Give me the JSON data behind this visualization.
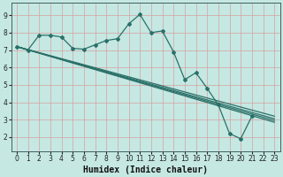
{
  "xlabel": "Humidex (Indice chaleur)",
  "bg_color": "#c5e8e3",
  "grid_color": "#d9a0a0",
  "line_color": "#2a7068",
  "marker": "D",
  "markersize": 2.0,
  "linewidth": 0.9,
  "xlim": [
    -0.5,
    23.5
  ],
  "ylim": [
    1.2,
    9.7
  ],
  "xticks": [
    0,
    1,
    2,
    3,
    4,
    5,
    6,
    7,
    8,
    9,
    10,
    11,
    12,
    13,
    14,
    15,
    16,
    17,
    18,
    19,
    20,
    21,
    22,
    23
  ],
  "yticks": [
    2,
    3,
    4,
    5,
    6,
    7,
    8,
    9
  ],
  "main_x": [
    0,
    1,
    2,
    3,
    4,
    5,
    6,
    7,
    8,
    9,
    10,
    11,
    12,
    13,
    14,
    15,
    16,
    17,
    18,
    19,
    20,
    21
  ],
  "main_y": [
    7.2,
    7.0,
    7.85,
    7.85,
    7.75,
    7.1,
    7.05,
    7.3,
    7.55,
    7.65,
    8.5,
    9.05,
    8.0,
    8.1,
    6.9,
    5.3,
    5.7,
    4.8,
    3.85,
    2.2,
    1.9,
    3.2
  ],
  "straight_lines": [
    [
      0,
      7.2,
      23,
      3.2
    ],
    [
      0,
      7.2,
      23,
      3.05
    ],
    [
      0,
      7.2,
      23,
      2.95
    ],
    [
      0,
      7.2,
      23,
      2.85
    ]
  ],
  "tick_fontsize": 5.5,
  "label_fontsize": 7.0
}
